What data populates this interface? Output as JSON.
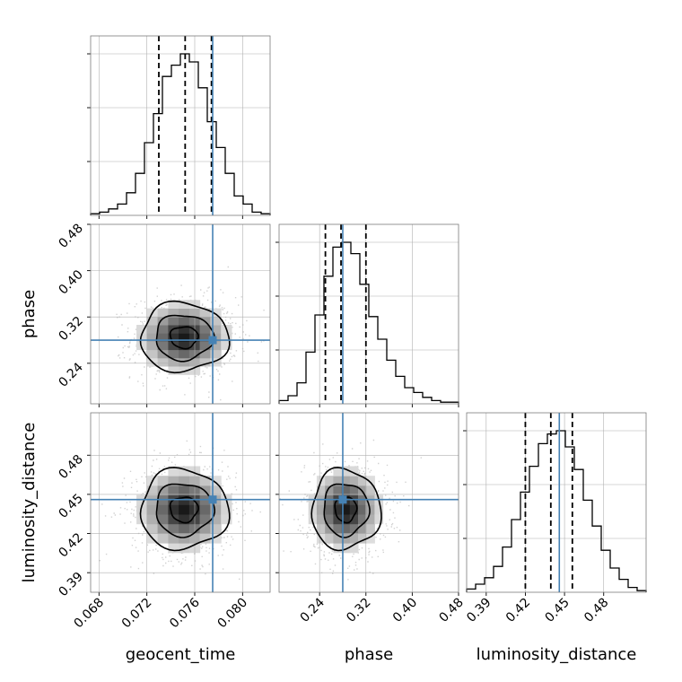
{
  "chart_data": {
    "type": "corner",
    "parameters": [
      "geocent_time",
      "phase",
      "luminosity_distance"
    ],
    "axis_labels": {
      "x": [
        "geocent_time",
        "phase",
        "luminosity_distance"
      ],
      "y_phase": "phase",
      "y_luminosity_distance": "luminosity_distance"
    },
    "ranges": {
      "geocent_time": [
        0.0673,
        0.0823
      ],
      "phase": [
        0.17,
        0.48
      ],
      "luminosity_distance": [
        0.375,
        0.5125
      ]
    },
    "ticks": {
      "geocent_time": [
        "0.068",
        "0.072",
        "0.076",
        "0.080"
      ],
      "phase": [
        "0.24",
        "0.32",
        "0.40",
        "0.48"
      ],
      "luminosity_distance": [
        "0.39",
        "0.42",
        "0.45",
        "0.48"
      ]
    },
    "tick_values": {
      "geocent_time": [
        0.068,
        0.072,
        0.076,
        0.08
      ],
      "phase": [
        0.24,
        0.32,
        0.4,
        0.48
      ],
      "luminosity_distance": [
        0.39,
        0.42,
        0.45,
        0.48
      ]
    },
    "truths": {
      "geocent_time": 0.0775,
      "phase": 0.28,
      "luminosity_distance": 0.446
    },
    "quantiles": {
      "geocent_time": [
        0.073,
        0.0752,
        0.0774
      ],
      "phase": [
        0.25,
        0.277,
        0.32
      ],
      "luminosity_distance": [
        0.42,
        0.4395,
        0.456
      ]
    },
    "histograms": {
      "geocent_time": [
        0.01,
        0.02,
        0.04,
        0.07,
        0.14,
        0.26,
        0.45,
        0.63,
        0.86,
        0.93,
        1.0,
        0.95,
        0.79,
        0.58,
        0.42,
        0.26,
        0.12,
        0.07,
        0.02,
        0.01
      ],
      "phase": [
        0.02,
        0.05,
        0.13,
        0.32,
        0.55,
        0.79,
        0.97,
        1.0,
        0.93,
        0.74,
        0.54,
        0.4,
        0.27,
        0.17,
        0.1,
        0.07,
        0.04,
        0.02,
        0.01,
        0.01
      ],
      "luminosity_distance": [
        0.02,
        0.05,
        0.09,
        0.16,
        0.28,
        0.45,
        0.62,
        0.78,
        0.92,
        0.98,
        1.0,
        0.9,
        0.76,
        0.57,
        0.41,
        0.26,
        0.15,
        0.08,
        0.03,
        0.01
      ]
    },
    "centers": {
      "geocent_time": 0.0751,
      "phase": 0.285,
      "luminosity_distance": 0.4385
    },
    "spreads": {
      "geocent_time": 0.0021,
      "phase": 0.034,
      "luminosity_distance": 0.0175
    },
    "colors": {
      "truth": "#4682b4",
      "hist": "#000000",
      "scatter": "#bfbfbf",
      "contour": "#000000"
    },
    "grid": true
  }
}
